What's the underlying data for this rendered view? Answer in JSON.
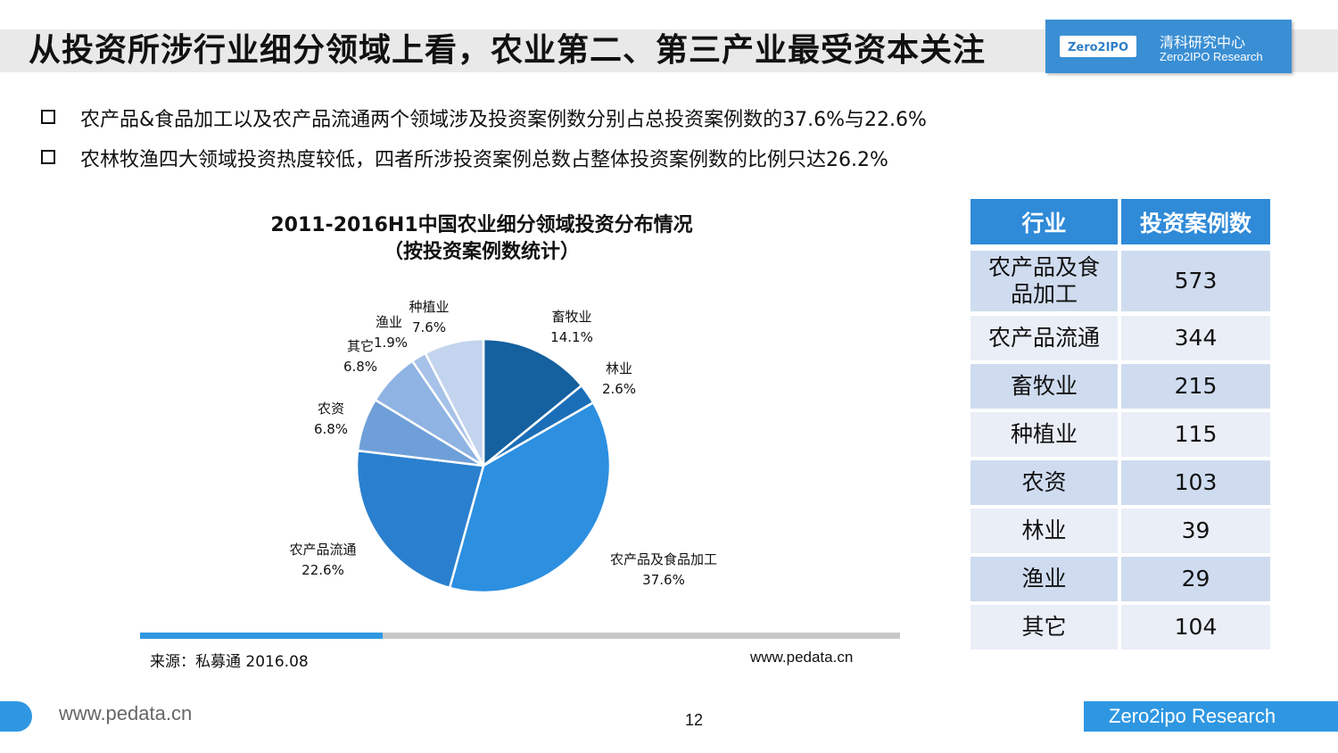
{
  "header": {
    "title": "从投资所涉行业细分领域上看，农业第二、第三产业最受资本关注",
    "logo_badge": "Zero2IPO",
    "logo_cn": "清科研究中心",
    "logo_en": "Zero2IPO Research"
  },
  "bullets": [
    "农产品&食品加工以及农产品流通两个领域涉及投资案例数分别占总投资案例数的37.6%与22.6%",
    "农林牧渔四大领域投资热度较低，四者所涉投资案例总数占整体投资案例数的比例只达26.2%"
  ],
  "chart_data": {
    "type": "pie",
    "title": "2011-2016H1中国农业细分领域投资分布情况",
    "subtitle": "（按投资案例数统计）",
    "slices": [
      {
        "name": "畜牧业",
        "value": 14.1,
        "label": "14.1%",
        "color": "#15609f"
      },
      {
        "name": "林业",
        "value": 2.6,
        "label": "2.6%",
        "color": "#1a6eb8"
      },
      {
        "name": "农产品及食品加工",
        "value": 37.6,
        "label": "37.6%",
        "color": "#2c8fe0"
      },
      {
        "name": "农产品流通",
        "value": 22.6,
        "label": "22.6%",
        "color": "#2a80cf"
      },
      {
        "name": "农资",
        "value": 6.8,
        "label": "6.8%",
        "color": "#6f9fd8"
      },
      {
        "name": "其它",
        "value": 6.8,
        "label": "6.8%",
        "color": "#8fb3e2"
      },
      {
        "name": "渔业",
        "value": 1.9,
        "label": "1.9%",
        "color": "#a7c2e8"
      },
      {
        "name": "种植业",
        "value": 7.6,
        "label": "7.6%",
        "color": "#c3d4ee"
      }
    ]
  },
  "source": {
    "text": "来源：私募通 2016.08",
    "url": "www.pedata.cn"
  },
  "table": {
    "headers": [
      "行业",
      "投资案例数"
    ],
    "rows": [
      {
        "name": "农产品及食品加工",
        "count": "573"
      },
      {
        "name": "农产品流通",
        "count": "344"
      },
      {
        "name": "畜牧业",
        "count": "215"
      },
      {
        "name": "种植业",
        "count": "115"
      },
      {
        "name": "农资",
        "count": "103"
      },
      {
        "name": "林业",
        "count": "39"
      },
      {
        "name": "渔业",
        "count": "29"
      },
      {
        "name": "其它",
        "count": "104"
      }
    ]
  },
  "footer": {
    "url": "www.pedata.cn",
    "page": "12",
    "brand": "Zero2ipo Research"
  },
  "colors": {
    "accent": "#2f97e2",
    "table_header": "#2f8ad8",
    "row_dark": "#cfdcf0",
    "row_light": "#e9eef7"
  }
}
